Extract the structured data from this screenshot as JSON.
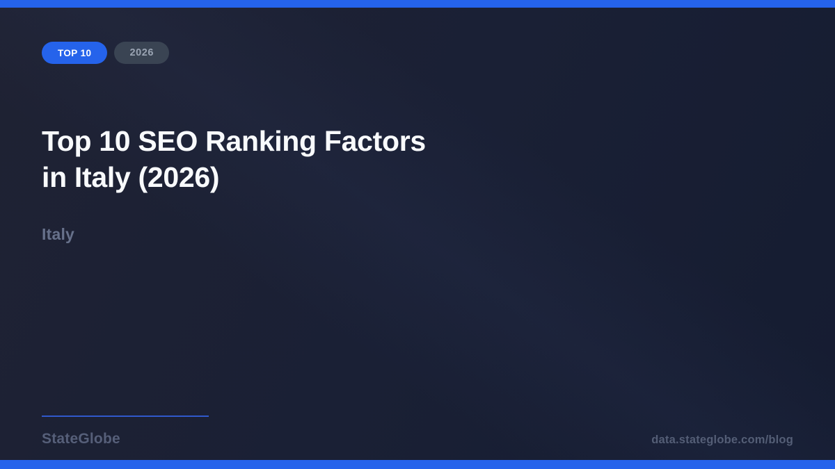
{
  "theme": {
    "accent": "#2563eb",
    "background": "#1a2035",
    "divider": "#3059cc",
    "title_color": "#f8fafc",
    "muted_text": "#67718b",
    "footer_text": "#565f79",
    "url_text": "#545e76",
    "badge_muted_bg": "#3a4453",
    "badge_muted_text": "#9aa4b3"
  },
  "header": {
    "badges": [
      {
        "id": "top10",
        "label": "TOP 10"
      },
      {
        "id": "year",
        "label": "2026"
      }
    ]
  },
  "main": {
    "title_lines": [
      "Top 10 SEO Ranking Factors",
      "in Italy (2026)"
    ],
    "subtitle": "Italy"
  },
  "footer": {
    "brand": "StateGlobe",
    "url": "data.stateglobe.com/blog"
  }
}
